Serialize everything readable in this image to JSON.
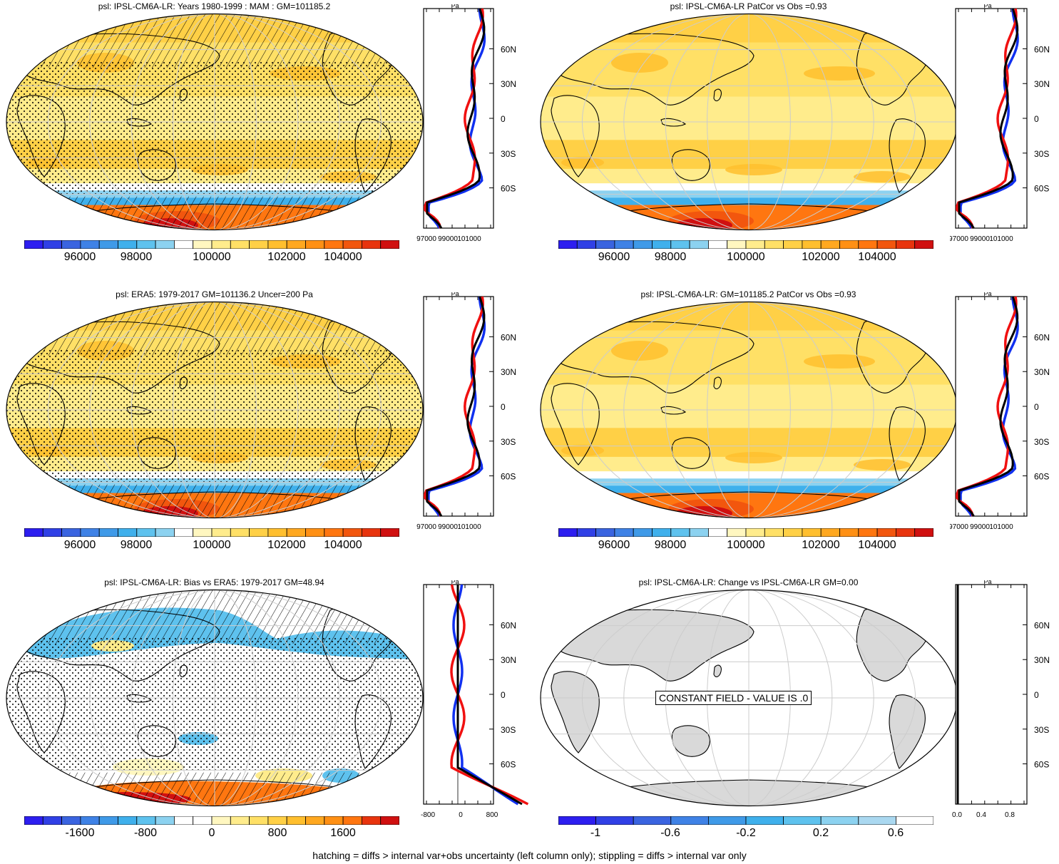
{
  "panels": [
    {
      "id": "p1",
      "title": "psl: IPSL-CM6A-LR: Years 1980-1999 : MAM : GM=101185.2",
      "field": "abs",
      "hatch": true,
      "stipple": true,
      "profile_xlabels": [
        "97000",
        "99000",
        "101000"
      ],
      "profile_top": "Pa",
      "lat_labels": [
        "60N",
        "30N",
        "0",
        "30S",
        "60S"
      ],
      "colorbar": [
        "96000",
        "98000",
        "100000",
        "102000",
        "104000"
      ]
    },
    {
      "id": "p2",
      "title": "psl: IPSL-CM6A-LR PatCor vs Obs =0.93",
      "field": "abs",
      "hatch": false,
      "stipple": false,
      "profile_xlabels": [
        "97000",
        "99000",
        "101000"
      ],
      "profile_top": "Pa",
      "lat_labels": [
        "60N",
        "30N",
        "0",
        "30S",
        "60S"
      ],
      "colorbar": [
        "96000",
        "98000",
        "100000",
        "102000",
        "104000"
      ]
    },
    {
      "id": "p3",
      "title": "psl: ERA5: 1979-2017 GM=101136.2 Uncer=200 Pa",
      "field": "abs",
      "hatch": true,
      "stipple": true,
      "profile_xlabels": [
        "97000",
        "99000",
        "101000"
      ],
      "profile_top": "Pa",
      "lat_labels": [
        "60N",
        "30N",
        "0",
        "30S",
        "60S"
      ],
      "colorbar": [
        "96000",
        "98000",
        "100000",
        "102000",
        "104000"
      ]
    },
    {
      "id": "p4",
      "title": "psl: IPSL-CM6A-LR: GM=101185.2 PatCor vs Obs =0.93",
      "field": "abs",
      "hatch": false,
      "stipple": false,
      "profile_xlabels": [
        "97000",
        "99000",
        "101000"
      ],
      "profile_top": "Pa",
      "lat_labels": [
        "60N",
        "30N",
        "0",
        "30S",
        "60S"
      ],
      "colorbar": [
        "96000",
        "98000",
        "100000",
        "102000",
        "104000"
      ]
    },
    {
      "id": "p5",
      "title": "psl: IPSL-CM6A-LR: Bias vs ERA5: 1979-2017 GM=48.94",
      "field": "bias",
      "hatch": true,
      "stipple": true,
      "profile_xlabels": [
        "-800",
        "0",
        "800"
      ],
      "profile_top": "Pa",
      "lat_labels": [
        "60N",
        "30N",
        "0",
        "30S",
        "60S"
      ],
      "colorbar": [
        "-1600",
        "-800",
        "0",
        "800",
        "1600"
      ]
    },
    {
      "id": "p6",
      "title": "psl: IPSL-CM6A-LR: Change vs IPSL-CM6A-LR GM=0.00",
      "field": "const",
      "hatch": false,
      "stipple": false,
      "constant_label": "CONSTANT FIELD - VALUE IS .0",
      "profile_xlabels": [
        "0.0",
        "0.4",
        "0.8"
      ],
      "profile_top": "Pa",
      "lat_labels": [
        "60N",
        "30N",
        "0",
        "30S",
        "60S"
      ],
      "colorbar": [
        "-1",
        "-0.6",
        "-0.2",
        "0.2",
        "0.6"
      ]
    }
  ],
  "colors": {
    "abs_scale": [
      "#2d1ef0",
      "#3040e6",
      "#3a64e0",
      "#3f82e6",
      "#3f9ae8",
      "#3fb0ec",
      "#5ec2ee",
      "#8cd2f0",
      "#ffffff",
      "#fff7c0",
      "#ffec8c",
      "#ffe066",
      "#ffd046",
      "#ffbf2e",
      "#ffa820",
      "#ff9014",
      "#ff7610",
      "#f2560e",
      "#e8340e",
      "#d01010"
    ],
    "bias_scale": [
      "#2d1ef0",
      "#3040e6",
      "#3a64e0",
      "#3f82e6",
      "#3f9ae8",
      "#3fb0ec",
      "#5ec2ee",
      "#8cd2f0",
      "#ffffff",
      "#ffffff",
      "#fff7c0",
      "#ffec8c",
      "#ffe066",
      "#ffd046",
      "#ffbf2e",
      "#ffa820",
      "#ff9014",
      "#ff7610",
      "#e8340e",
      "#d01010"
    ],
    "const_scale": [
      "#2d1ef0",
      "#3040e6",
      "#3a64e0",
      "#3f82e6",
      "#3f9ae8",
      "#3fb0ec",
      "#5ec2ee",
      "#8cd2f0",
      "#aad8f0",
      "#ffffff"
    ]
  },
  "footnote": "hatching = diffs > internal var+obs uncertainty (left column only); stippling = diffs > internal var only"
}
